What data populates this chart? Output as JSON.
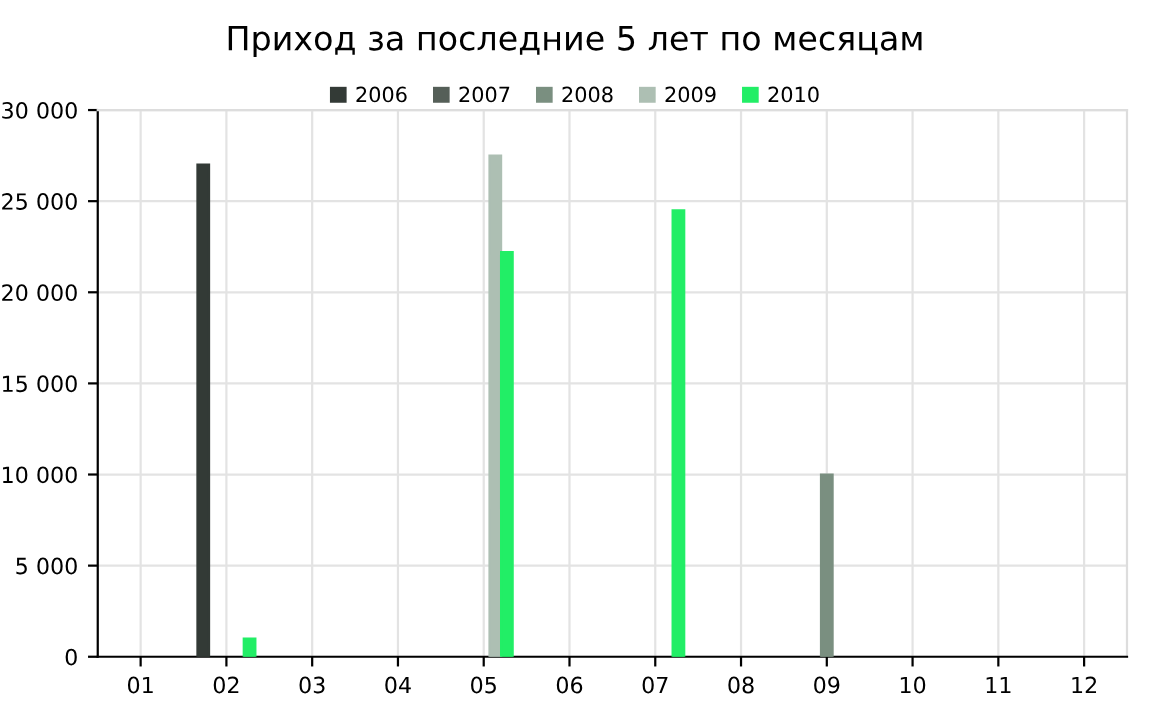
{
  "chart_data": {
    "type": "bar",
    "title": "Приход за последние 5 лет по месяцам",
    "categories": [
      "01",
      "02",
      "03",
      "04",
      "05",
      "06",
      "07",
      "08",
      "09",
      "10",
      "11",
      "12"
    ],
    "series": [
      {
        "name": "2006",
        "color": "#333a36",
        "values": [
          null,
          27000,
          null,
          null,
          null,
          null,
          null,
          null,
          null,
          null,
          null,
          null
        ]
      },
      {
        "name": "2007",
        "color": "#555f58",
        "values": [
          null,
          null,
          null,
          null,
          null,
          null,
          null,
          null,
          null,
          null,
          null,
          null
        ]
      },
      {
        "name": "2008",
        "color": "#7a8f80",
        "values": [
          null,
          null,
          null,
          null,
          null,
          null,
          null,
          null,
          10000,
          null,
          null,
          null
        ]
      },
      {
        "name": "2009",
        "color": "#adbfb3",
        "values": [
          null,
          null,
          null,
          null,
          27500,
          null,
          null,
          null,
          null,
          null,
          null,
          null
        ]
      },
      {
        "name": "2010",
        "color": "#22ee66",
        "values": [
          null,
          1000,
          null,
          null,
          22200,
          null,
          24500,
          null,
          null,
          null,
          null,
          null
        ]
      }
    ],
    "ylim": [
      0,
      30000
    ],
    "yticks": [
      {
        "value": 0,
        "label": "0"
      },
      {
        "value": 5000,
        "label": "5 000"
      },
      {
        "value": 10000,
        "label": "10 000"
      },
      {
        "value": 15000,
        "label": "15 000"
      },
      {
        "value": 20000,
        "label": "20 000"
      },
      {
        "value": 25000,
        "label": "25 000"
      },
      {
        "value": 30000,
        "label": "30 000"
      }
    ],
    "grid": true,
    "legend": "top"
  }
}
